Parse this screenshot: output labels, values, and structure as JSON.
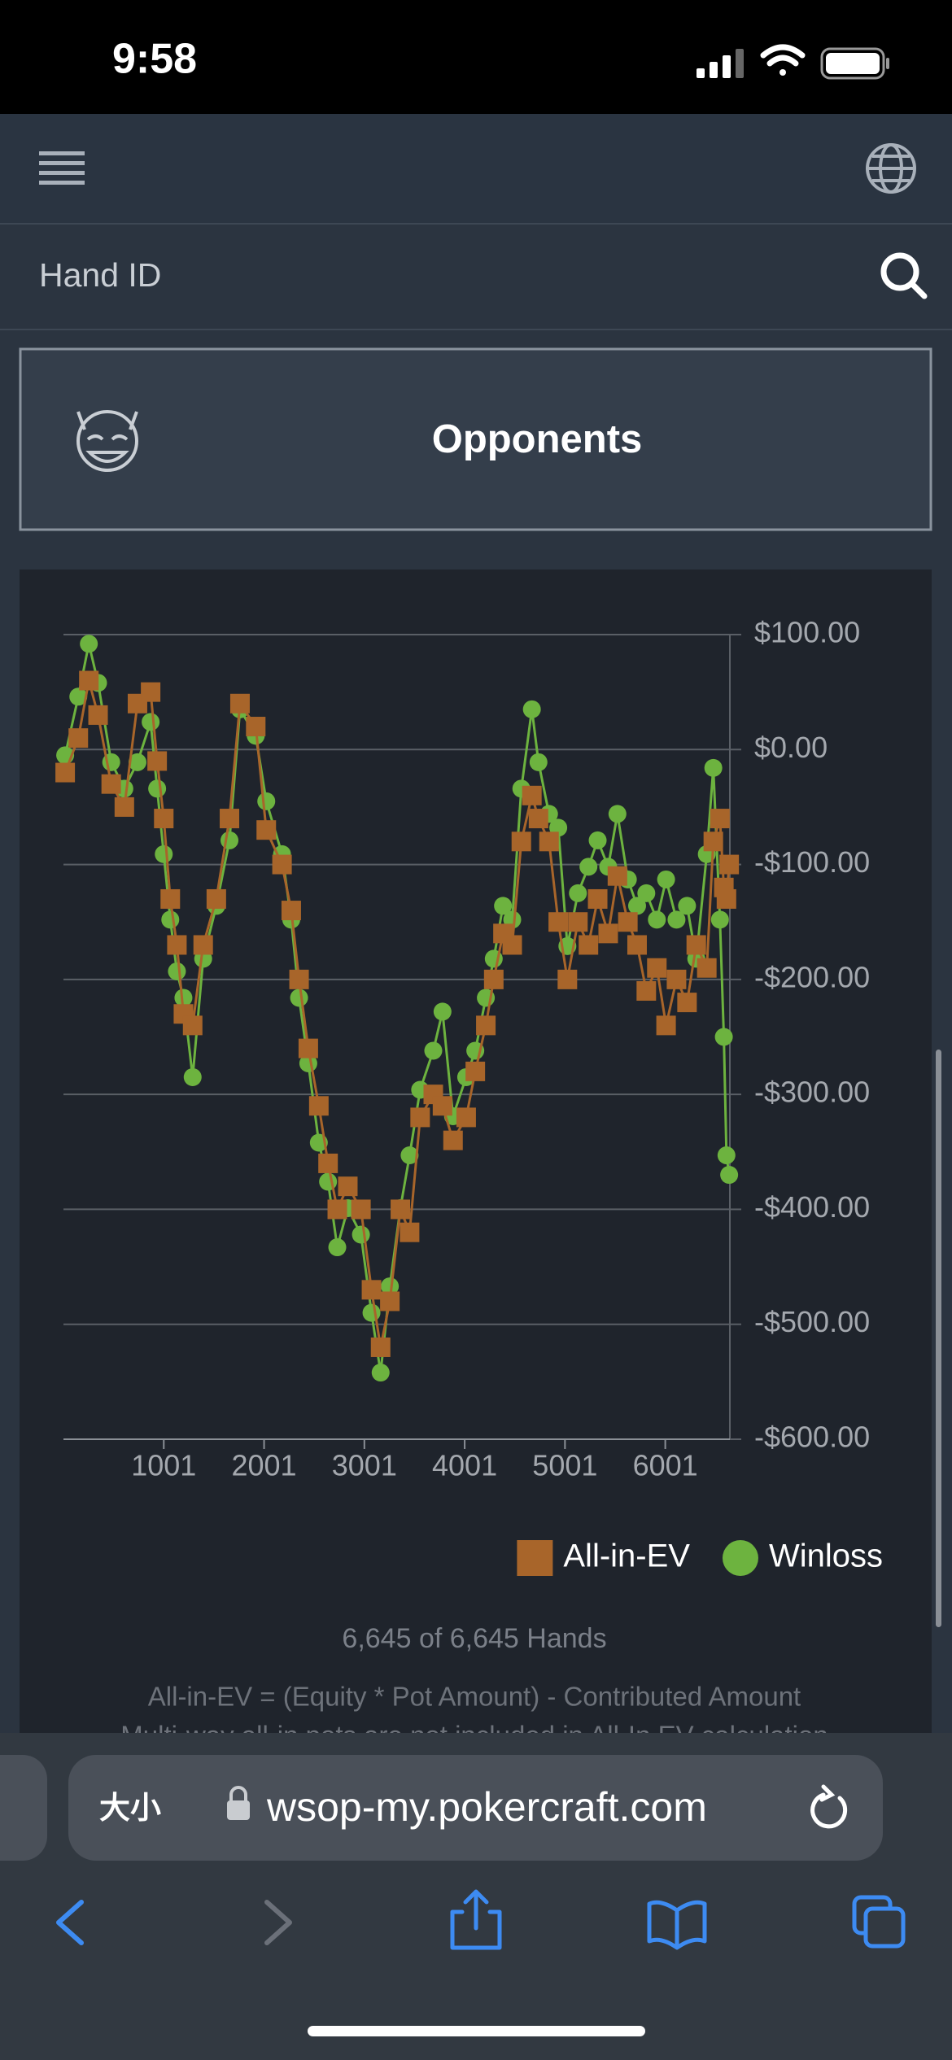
{
  "status_bar": {
    "time": "9:58"
  },
  "search": {
    "placeholder": "Hand ID"
  },
  "opponents": {
    "label": "Opponents"
  },
  "chart_data": {
    "type": "line",
    "x": [
      18,
      149,
      254,
      346,
      477,
      608,
      739,
      870,
      935,
      1001,
      1066,
      1132,
      1197,
      1289,
      1394,
      1525,
      1656,
      1761,
      1918,
      2023,
      2180,
      2272,
      2350,
      2442,
      2547,
      2639,
      2731,
      2836,
      2967,
      3072,
      3163,
      3255,
      3360,
      3452,
      3557,
      3688,
      3780,
      3885,
      4016,
      4107,
      4212,
      4291,
      4383,
      4475,
      4566,
      4671,
      4737,
      4842,
      4934,
      5025,
      5130,
      5235,
      5327,
      5432,
      5524,
      5628,
      5720,
      5812,
      5917,
      6009,
      6113,
      6218,
      6310,
      6415,
      6480,
      6546,
      6585,
      6611,
      6638
    ],
    "series": [
      {
        "name": "All-in-EV",
        "color": "#a8652a",
        "marker": "square",
        "values": [
          -20,
          10,
          60,
          30,
          -30,
          -50,
          40,
          50,
          -10,
          -60,
          -130,
          -170,
          -230,
          -240,
          -170,
          -130,
          -60,
          40,
          20,
          -70,
          -100,
          -140,
          -200,
          -260,
          -310,
          -360,
          -400,
          -380,
          -400,
          -470,
          -520,
          -480,
          -400,
          -420,
          -320,
          -300,
          -310,
          -340,
          -320,
          -280,
          -240,
          -200,
          -160,
          -170,
          -80,
          -40,
          -60,
          -80,
          -150,
          -200,
          -150,
          -170,
          -130,
          -160,
          -110,
          -150,
          -170,
          -210,
          -190,
          -240,
          -200,
          -220,
          -170,
          -190,
          -80,
          -60,
          -120,
          -130,
          -100
        ]
      },
      {
        "name": "Winloss",
        "color": "#6db33f",
        "marker": "circle",
        "values": [
          -5,
          46,
          92,
          58,
          -11,
          -34,
          -11,
          24,
          -34,
          -91,
          -148,
          -193,
          -216,
          -285,
          -182,
          -136,
          -79,
          35,
          12,
          -45,
          -91,
          -148,
          -216,
          -273,
          -342,
          -376,
          -433,
          -399,
          -422,
          -490,
          -542,
          -467,
          -399,
          -353,
          -296,
          -262,
          -228,
          -319,
          -285,
          -262,
          -216,
          -182,
          -136,
          -148,
          -34,
          35,
          -11,
          -56,
          -68,
          -171,
          -125,
          -102,
          -79,
          -102,
          -56,
          -113,
          -136,
          -125,
          -148,
          -113,
          -148,
          -136,
          -182,
          -91,
          -16,
          -148,
          -250,
          -353,
          -370
        ]
      }
    ],
    "xlim": [
      1,
      6645
    ],
    "ylim": [
      -600,
      100
    ],
    "xticks": [
      1001,
      2001,
      3001,
      4001,
      5001,
      6001
    ],
    "yticks": [
      {
        "value": 100,
        "label": "$100.00"
      },
      {
        "value": 0,
        "label": "$0.00"
      },
      {
        "value": -100,
        "label": "-$100.00"
      },
      {
        "value": -200,
        "label": "-$200.00"
      },
      {
        "value": -300,
        "label": "-$300.00"
      },
      {
        "value": -400,
        "label": "-$400.00"
      },
      {
        "value": -500,
        "label": "-$500.00"
      },
      {
        "value": -600,
        "label": "-$600.00"
      }
    ],
    "grid": true,
    "legend_position": "bottom-right"
  },
  "footer": {
    "count": "6,645 of 6,645 Hands",
    "notes": [
      "All-in-EV = (Equity * Pot Amount) - Contributed Amount",
      "Multi-way all-in pots are not included in All-In EV calculation"
    ]
  },
  "browser": {
    "text_size": "大小",
    "url": "wsop-my.pokercraft.com"
  }
}
